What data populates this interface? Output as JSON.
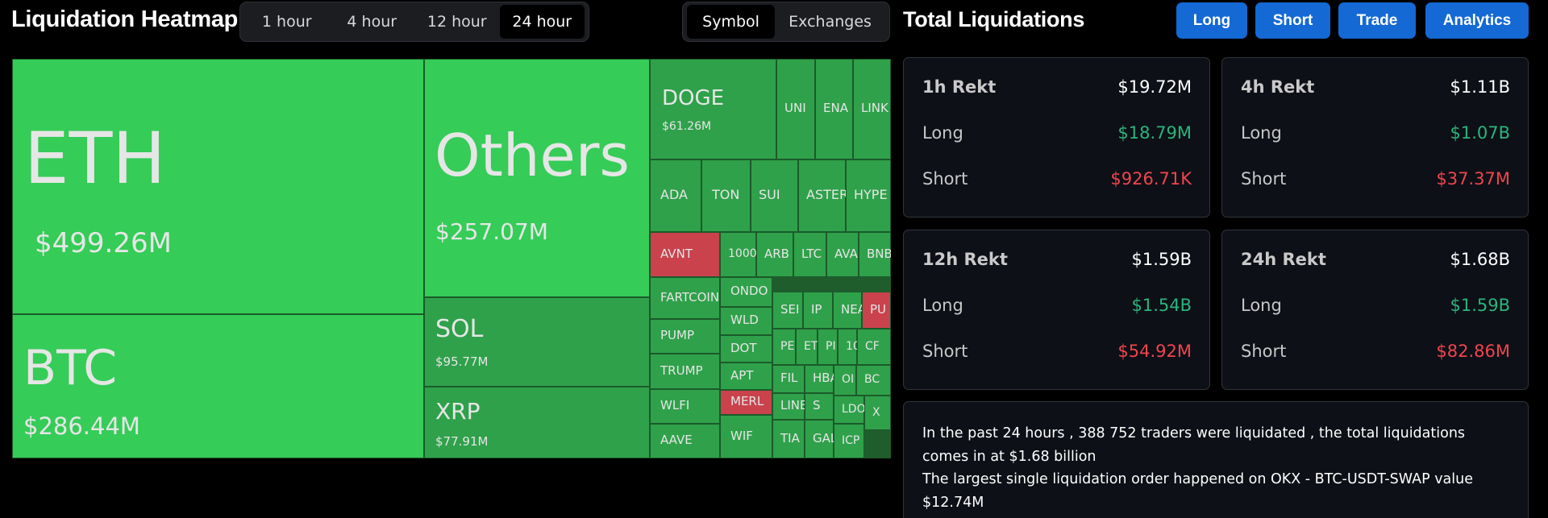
{
  "heatmap": {
    "title": "Liquidation Heatmap",
    "time_options": [
      "1 hour",
      "4 hour",
      "12 hour",
      "24 hour"
    ],
    "time_selected": "24 hour",
    "view_options": [
      "Symbol",
      "Exchanges"
    ],
    "view_selected": "Symbol",
    "tiles": {
      "eth": {
        "symbol": "ETH",
        "value": "$499.26M"
      },
      "btc": {
        "symbol": "BTC",
        "value": "$286.44M"
      },
      "others": {
        "symbol": "Others",
        "value": "$257.07M"
      },
      "sol": {
        "symbol": "SOL",
        "value": "$95.77M"
      },
      "xrp": {
        "symbol": "XRP",
        "value": "$77.91M"
      },
      "doge": {
        "symbol": "DOGE",
        "value": "$61.26M"
      },
      "small": [
        "UNI",
        "ENA",
        "LINK",
        "ADA",
        "TON",
        "SUI",
        "ASTER",
        "HYPE",
        "AVNT",
        "1000",
        "ARB",
        "LTC",
        "AVA",
        "BNB",
        "FARTCOIN",
        "ONDO",
        "SEI",
        "IP",
        "NEA",
        "PU",
        "PUMP",
        "WLD",
        "PE",
        "ET",
        "PI",
        "10",
        "CF",
        "TRUMP",
        "DOT",
        "FIL",
        "HBA",
        "OI",
        "BC",
        "WLFI",
        "APT",
        "MERL",
        "LINE",
        "S",
        "LDO",
        "X",
        "AAVE",
        "WIF",
        "TIA",
        "GAL",
        "ICP"
      ]
    }
  },
  "total": {
    "title": "Total Liquidations",
    "buttons": {
      "long": "Long",
      "short": "Short",
      "trade": "Trade",
      "analytics": "Analytics"
    },
    "cards": [
      {
        "title": "1h Rekt",
        "total": "$19.72M",
        "long_label": "Long",
        "long": "$18.79M",
        "short_label": "Short",
        "short": "$926.71K"
      },
      {
        "title": "4h Rekt",
        "total": "$1.11B",
        "long_label": "Long",
        "long": "$1.07B",
        "short_label": "Short",
        "short": "$37.37M"
      },
      {
        "title": "12h Rekt",
        "total": "$1.59B",
        "long_label": "Long",
        "long": "$1.54B",
        "short_label": "Short",
        "short": "$54.92M"
      },
      {
        "title": "24h Rekt",
        "total": "$1.68B",
        "long_label": "Long",
        "long": "$1.59B",
        "short_label": "Short",
        "short": "$82.86M"
      }
    ],
    "summary_line1": "In the past 24 hours , 388 752 traders were liquidated , the total liquidations comes in at $1.68 billion",
    "summary_line2": "The largest single liquidation order happened on OKX - BTC-USDT-SWAP value $12.74M"
  },
  "colors": {
    "tile_large": "#35cc58",
    "tile_small": "#2fa14a",
    "tile_short_heavy": "#c9424c",
    "button_blue": "#1469d4",
    "long_green": "#2ab57d",
    "short_red": "#f0454f"
  }
}
